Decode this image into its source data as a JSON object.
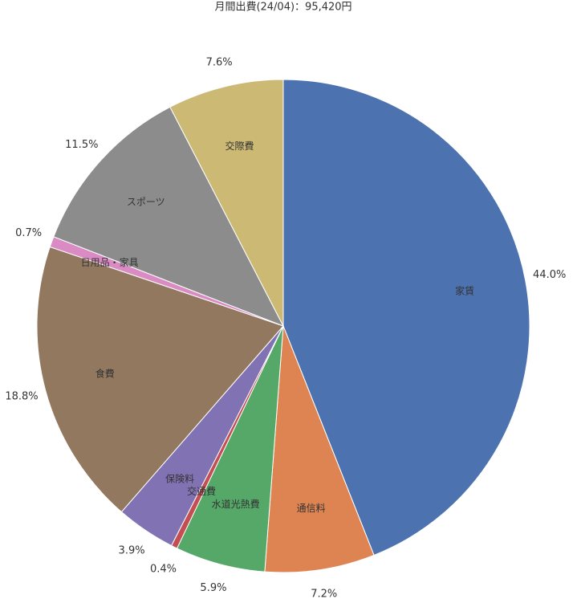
{
  "chart_data": {
    "type": "pie",
    "title": "月間出費(24/04)：95,420円",
    "categories": [
      "家賃",
      "通信料",
      "水道光熱費",
      "交通費",
      "保険料",
      "食費",
      "日用品・家具",
      "スポーツ",
      "交際費"
    ],
    "values": [
      44.0,
      7.2,
      5.9,
      0.4,
      3.9,
      18.8,
      0.7,
      11.5,
      7.6
    ],
    "value_labels": [
      "44.0%",
      "7.2%",
      "5.9%",
      "0.4%",
      "3.9%",
      "18.8%",
      "0.7%",
      "11.5%",
      "7.6%"
    ],
    "colors": [
      "#4c72b0",
      "#dd8452",
      "#55a868",
      "#c44e52",
      "#8172b3",
      "#937860",
      "#da8bc3",
      "#8c8c8c",
      "#ccb974"
    ]
  }
}
